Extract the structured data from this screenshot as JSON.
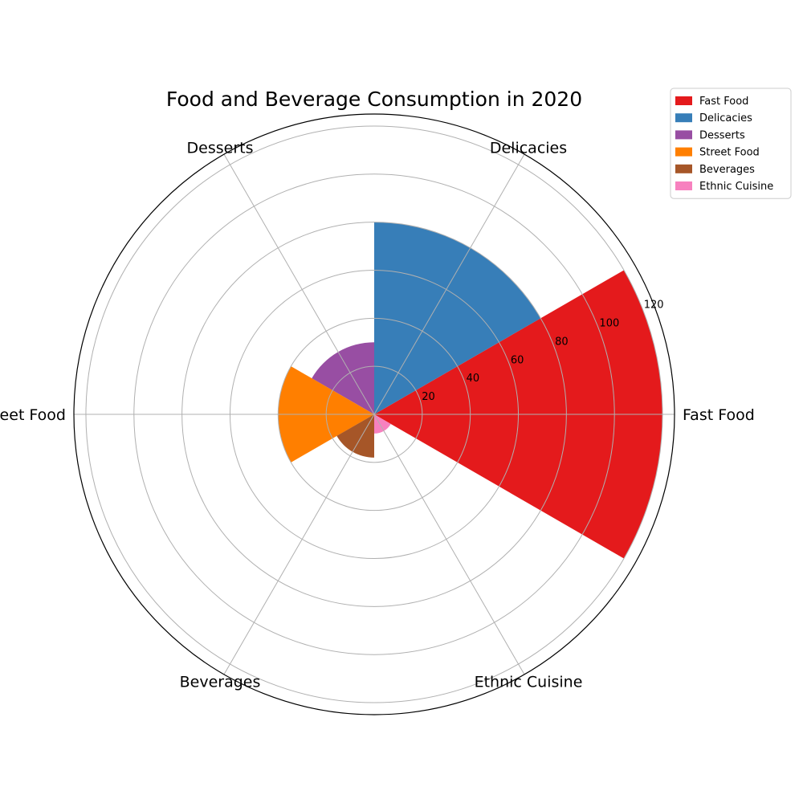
{
  "chart_data": {
    "type": "polar-bar",
    "title": "Food and Beverage Consumption in 2020",
    "categories": [
      "Fast Food",
      "Delicacies",
      "Desserts",
      "Street Food",
      "Beverages",
      "Ethnic Cuisine"
    ],
    "values": [
      120,
      80,
      30,
      40,
      18,
      8
    ],
    "colors": [
      "#e41a1c",
      "#377eb8",
      "#984ea3",
      "#ff7f00",
      "#a65628",
      "#f781bf"
    ],
    "radial_ticks": [
      "20",
      "40",
      "60",
      "80",
      "100",
      "120"
    ],
    "rlim": [
      0,
      125
    ],
    "grid": true,
    "legend": {
      "placement": "top-right",
      "entries": [
        "Fast Food",
        "Delicacies",
        "Desserts",
        "Street Food",
        "Beverages",
        "Ethnic Cuisine"
      ]
    }
  }
}
